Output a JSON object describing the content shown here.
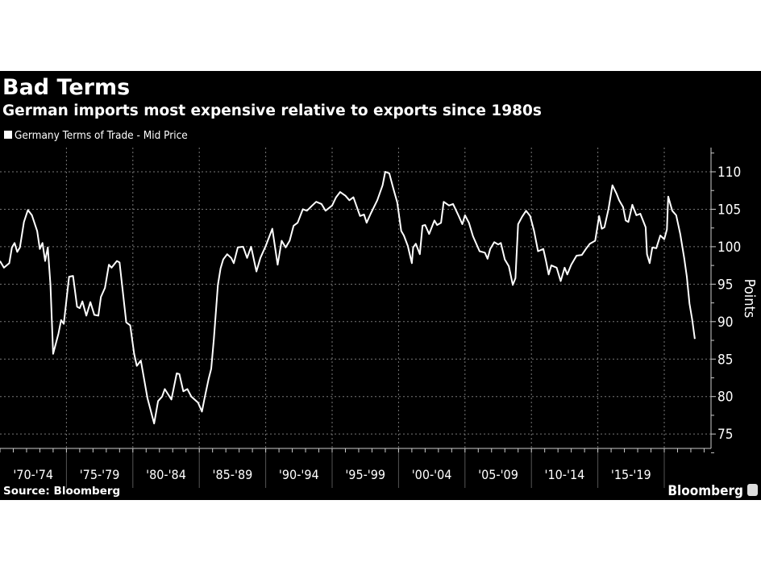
{
  "title": "Bad Terms",
  "subtitle": "German imports most expensive relative to exports since 1980s",
  "source": "Source: Bloomberg",
  "brand": "Bloomberg",
  "colors": {
    "background": "#000000",
    "line": "#ffffff",
    "text": "#ffffff",
    "grid": "#777777"
  },
  "chart_data": {
    "type": "line",
    "legend": [
      "Germany Terms of Trade - Mid Price"
    ],
    "legend_placement": "top-left",
    "ylabel": "Points",
    "xlabel": "",
    "y_axis_side": "right",
    "ylim": [
      73,
      113
    ],
    "yticks": [
      75,
      80,
      85,
      90,
      95,
      100,
      105,
      110
    ],
    "xlim": [
      1970,
      2023
    ],
    "x_tick_labels": [
      "'70-'74",
      "'75-'79",
      "'80-'84",
      "'85-'89",
      "'90-'94",
      "'95-'99",
      "'00-'04",
      "'05-'09",
      "'10-'14",
      "'15-'19"
    ],
    "grid": true,
    "series": [
      {
        "name": "Germany Terms of Trade - Mid Price",
        "points": [
          [
            1970.0,
            98.1
          ],
          [
            1970.3,
            97.2
          ],
          [
            1970.7,
            97.8
          ],
          [
            1970.9,
            99.9
          ],
          [
            1971.1,
            100.5
          ],
          [
            1971.3,
            99.3
          ],
          [
            1971.5,
            99.9
          ],
          [
            1971.8,
            103.3
          ],
          [
            1972.1,
            104.9
          ],
          [
            1972.4,
            104.2
          ],
          [
            1972.8,
            102.1
          ],
          [
            1973.0,
            99.7
          ],
          [
            1973.2,
            100.5
          ],
          [
            1973.4,
            98.1
          ],
          [
            1973.6,
            99.9
          ],
          [
            1973.8,
            94.9
          ],
          [
            1974.0,
            85.7
          ],
          [
            1974.4,
            88.4
          ],
          [
            1974.6,
            90.2
          ],
          [
            1974.8,
            89.7
          ],
          [
            1975.2,
            96.0
          ],
          [
            1975.5,
            96.1
          ],
          [
            1975.8,
            92.0
          ],
          [
            1976.0,
            91.8
          ],
          [
            1976.2,
            92.7
          ],
          [
            1976.5,
            90.8
          ],
          [
            1976.8,
            92.6
          ],
          [
            1977.1,
            90.9
          ],
          [
            1977.4,
            90.8
          ],
          [
            1977.6,
            93.3
          ],
          [
            1977.9,
            94.5
          ],
          [
            1978.2,
            97.6
          ],
          [
            1978.4,
            97.2
          ],
          [
            1978.8,
            98.1
          ],
          [
            1979.0,
            97.9
          ],
          [
            1979.5,
            89.9
          ],
          [
            1979.8,
            89.5
          ],
          [
            1980.1,
            85.7
          ],
          [
            1980.3,
            84.1
          ],
          [
            1980.6,
            84.8
          ],
          [
            1981.1,
            79.8
          ],
          [
            1981.6,
            76.4
          ],
          [
            1981.9,
            79.4
          ],
          [
            1982.2,
            80.0
          ],
          [
            1982.4,
            81.0
          ],
          [
            1982.9,
            79.6
          ],
          [
            1983.3,
            83.1
          ],
          [
            1983.5,
            83.0
          ],
          [
            1983.8,
            80.7
          ],
          [
            1984.1,
            81.0
          ],
          [
            1984.4,
            80.0
          ],
          [
            1984.9,
            79.2
          ],
          [
            1985.2,
            78.0
          ],
          [
            1985.4,
            79.8
          ],
          [
            1985.7,
            82.3
          ],
          [
            1985.9,
            83.7
          ],
          [
            1986.1,
            87.7
          ],
          [
            1986.4,
            94.9
          ],
          [
            1986.6,
            97.1
          ],
          [
            1986.8,
            98.3
          ],
          [
            1987.1,
            99.0
          ],
          [
            1987.4,
            98.5
          ],
          [
            1987.6,
            97.8
          ],
          [
            1987.9,
            99.9
          ],
          [
            1988.3,
            100.0
          ],
          [
            1988.6,
            98.5
          ],
          [
            1988.9,
            100.0
          ],
          [
            1989.3,
            96.7
          ],
          [
            1989.6,
            98.5
          ],
          [
            1990.0,
            100.1
          ],
          [
            1990.5,
            102.4
          ],
          [
            1990.9,
            97.6
          ],
          [
            1991.2,
            100.8
          ],
          [
            1991.5,
            99.9
          ],
          [
            1991.8,
            100.8
          ],
          [
            1992.1,
            102.8
          ],
          [
            1992.4,
            103.2
          ],
          [
            1992.8,
            105.0
          ],
          [
            1993.1,
            104.8
          ],
          [
            1993.5,
            105.5
          ],
          [
            1993.8,
            106.0
          ],
          [
            1994.2,
            105.7
          ],
          [
            1994.5,
            104.8
          ],
          [
            1995.0,
            105.5
          ],
          [
            1995.3,
            106.6
          ],
          [
            1995.6,
            107.3
          ],
          [
            1996.0,
            106.8
          ],
          [
            1996.3,
            106.2
          ],
          [
            1996.6,
            106.6
          ],
          [
            1997.1,
            104.1
          ],
          [
            1997.4,
            104.3
          ],
          [
            1997.6,
            103.2
          ],
          [
            1997.9,
            104.4
          ],
          [
            1998.4,
            106.2
          ],
          [
            1998.8,
            108.2
          ],
          [
            1999.0,
            110.0
          ],
          [
            1999.3,
            109.8
          ],
          [
            1999.6,
            107.8
          ],
          [
            1999.9,
            105.9
          ],
          [
            2000.2,
            102.1
          ],
          [
            2000.4,
            101.5
          ],
          [
            2000.7,
            100.1
          ],
          [
            2001.0,
            97.8
          ],
          [
            2001.1,
            99.9
          ],
          [
            2001.3,
            100.4
          ],
          [
            2001.6,
            99.0
          ],
          [
            2001.8,
            102.8
          ],
          [
            2002.0,
            102.9
          ],
          [
            2002.3,
            101.7
          ],
          [
            2002.7,
            103.5
          ],
          [
            2002.9,
            102.9
          ],
          [
            2003.2,
            103.2
          ],
          [
            2003.4,
            106.0
          ],
          [
            2003.8,
            105.5
          ],
          [
            2004.1,
            105.7
          ],
          [
            2004.5,
            104.2
          ],
          [
            2004.8,
            103.0
          ],
          [
            2005.0,
            104.2
          ],
          [
            2005.3,
            103.2
          ],
          [
            2005.6,
            101.4
          ],
          [
            2006.1,
            99.4
          ],
          [
            2006.5,
            99.2
          ],
          [
            2006.7,
            98.4
          ],
          [
            2006.9,
            99.7
          ],
          [
            2007.2,
            100.6
          ],
          [
            2007.5,
            100.3
          ],
          [
            2007.7,
            100.5
          ],
          [
            2008.0,
            98.3
          ],
          [
            2008.3,
            97.4
          ],
          [
            2008.6,
            94.9
          ],
          [
            2008.8,
            95.8
          ],
          [
            2009.0,
            103.0
          ],
          [
            2009.3,
            104.0
          ],
          [
            2009.6,
            104.8
          ],
          [
            2009.9,
            104.1
          ],
          [
            2010.2,
            102.1
          ],
          [
            2010.5,
            99.4
          ],
          [
            2010.9,
            99.7
          ],
          [
            2011.1,
            98.1
          ],
          [
            2011.3,
            96.3
          ],
          [
            2011.5,
            97.5
          ],
          [
            2011.9,
            97.2
          ],
          [
            2012.2,
            95.4
          ],
          [
            2012.5,
            97.2
          ],
          [
            2012.7,
            96.3
          ],
          [
            2013.0,
            97.6
          ],
          [
            2013.4,
            98.8
          ],
          [
            2013.8,
            98.9
          ],
          [
            2014.1,
            99.7
          ],
          [
            2014.4,
            100.4
          ],
          [
            2014.8,
            100.8
          ],
          [
            2015.1,
            104.1
          ],
          [
            2015.3,
            102.4
          ],
          [
            2015.5,
            102.6
          ],
          [
            2015.8,
            105.0
          ],
          [
            2016.1,
            108.2
          ],
          [
            2016.4,
            107.1
          ],
          [
            2016.6,
            106.2
          ],
          [
            2016.9,
            105.3
          ],
          [
            2017.1,
            103.5
          ],
          [
            2017.3,
            103.3
          ],
          [
            2017.6,
            105.6
          ],
          [
            2017.9,
            104.2
          ],
          [
            2018.2,
            104.4
          ],
          [
            2018.6,
            102.6
          ],
          [
            2018.7,
            99.0
          ],
          [
            2018.9,
            97.8
          ],
          [
            2019.1,
            99.9
          ],
          [
            2019.4,
            99.8
          ],
          [
            2019.7,
            101.5
          ],
          [
            2020.0,
            101.0
          ],
          [
            2020.2,
            102.3
          ],
          [
            2020.3,
            106.7
          ],
          [
            2020.6,
            104.8
          ],
          [
            2020.9,
            104.2
          ],
          [
            2021.2,
            101.7
          ],
          [
            2021.5,
            98.5
          ],
          [
            2021.7,
            96.0
          ],
          [
            2021.9,
            92.4
          ],
          [
            2022.1,
            90.3
          ],
          [
            2022.3,
            87.7
          ]
        ]
      }
    ]
  }
}
